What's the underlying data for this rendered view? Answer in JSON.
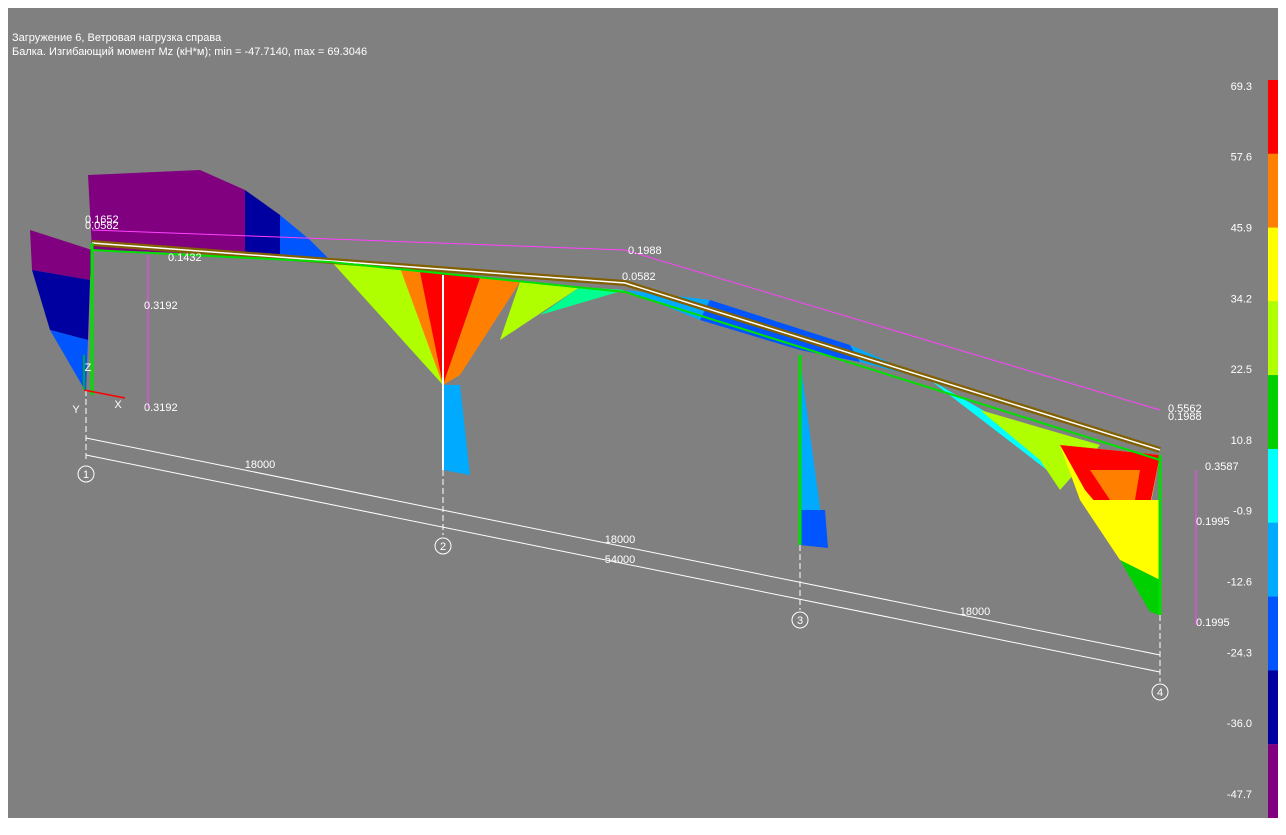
{
  "header": {
    "load_case": "Загружение 6, Ветровая нагрузка справа",
    "result": "Балка. Изгибающий момент Mz (кН*м); min =  -47.7140, max =  69.3046"
  },
  "legend": {
    "labels": [
      "69.3",
      "57.6",
      "45.9",
      "34.2",
      "22.5",
      "10.8",
      "-0.9",
      "-12.6",
      "-24.3",
      "-36.0",
      "-47.7"
    ],
    "colors": [
      "#ff0000",
      "#ff8000",
      "#ffff00",
      "#b0ff00",
      "#00d000",
      "#00ffff",
      "#00aaff",
      "#0055ff",
      "#0000a0",
      "#800080"
    ]
  },
  "grid_axes": {
    "labels": [
      "1",
      "2",
      "3",
      "4"
    ],
    "dimensions": [
      "18000",
      "18000",
      "18000",
      "54000"
    ]
  },
  "coordinate_axes": [
    "Y",
    "X",
    "Z"
  ],
  "annotations": [
    "0.1652",
    "0.0582",
    "0.1432",
    "0.3192",
    "0.3192",
    "0.1988",
    "0.0582",
    "0.5562",
    "0.1988",
    "0.3587",
    "0.1995",
    "0.1995"
  ]
}
